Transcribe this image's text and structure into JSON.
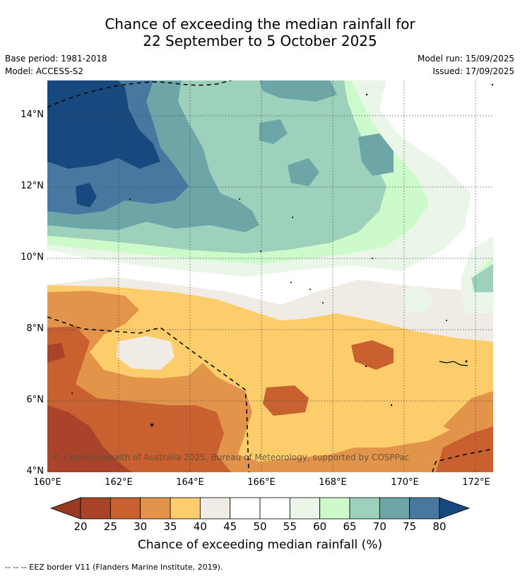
{
  "title": {
    "line1": "Chance of exceeding the median rainfall for",
    "line2": "22 September to 5 October 2025"
  },
  "meta": {
    "base_period": "Base period: 1981-2018",
    "model": "Model: ACCESS-S2",
    "model_run": "Model run: 15/09/2025",
    "issued": "Issued: 17/09/2025"
  },
  "map": {
    "lon_range": [
      160,
      172.5
    ],
    "lat_range": [
      4,
      15
    ],
    "lat_ticks": [
      "4°N",
      "6°N",
      "8°N",
      "10°N",
      "12°N",
      "14°N"
    ],
    "lon_ticks": [
      "160°E",
      "162°E",
      "164°E",
      "166°E",
      "168°E",
      "170°E",
      "172°E"
    ],
    "gridlines": true,
    "copyright": "© Commonwealth of Australia 2025, Bureau of Meteorology, supported by COSPPac"
  },
  "colorbar": {
    "ticks": [
      "20",
      "25",
      "30",
      "35",
      "40",
      "45",
      "50",
      "55",
      "60",
      "65",
      "70",
      "75",
      "80"
    ],
    "colors": [
      "#a9442a",
      "#c8612f",
      "#e2954a",
      "#fdcd6b",
      "#f0ebe4",
      "#ffffff",
      "#ffffff",
      "#e9f6e8",
      "#ccfacb",
      "#9dd1bb",
      "#6ea6a8",
      "#4878a0"
    ],
    "low_color": "#993a22",
    "high_color": "#17497e",
    "title": "Chance of exceeding median rainfall (%)"
  },
  "legend": {
    "eez": "--  --  -- EEZ border V11 (Flanders Marine Institute, 2019)."
  }
}
